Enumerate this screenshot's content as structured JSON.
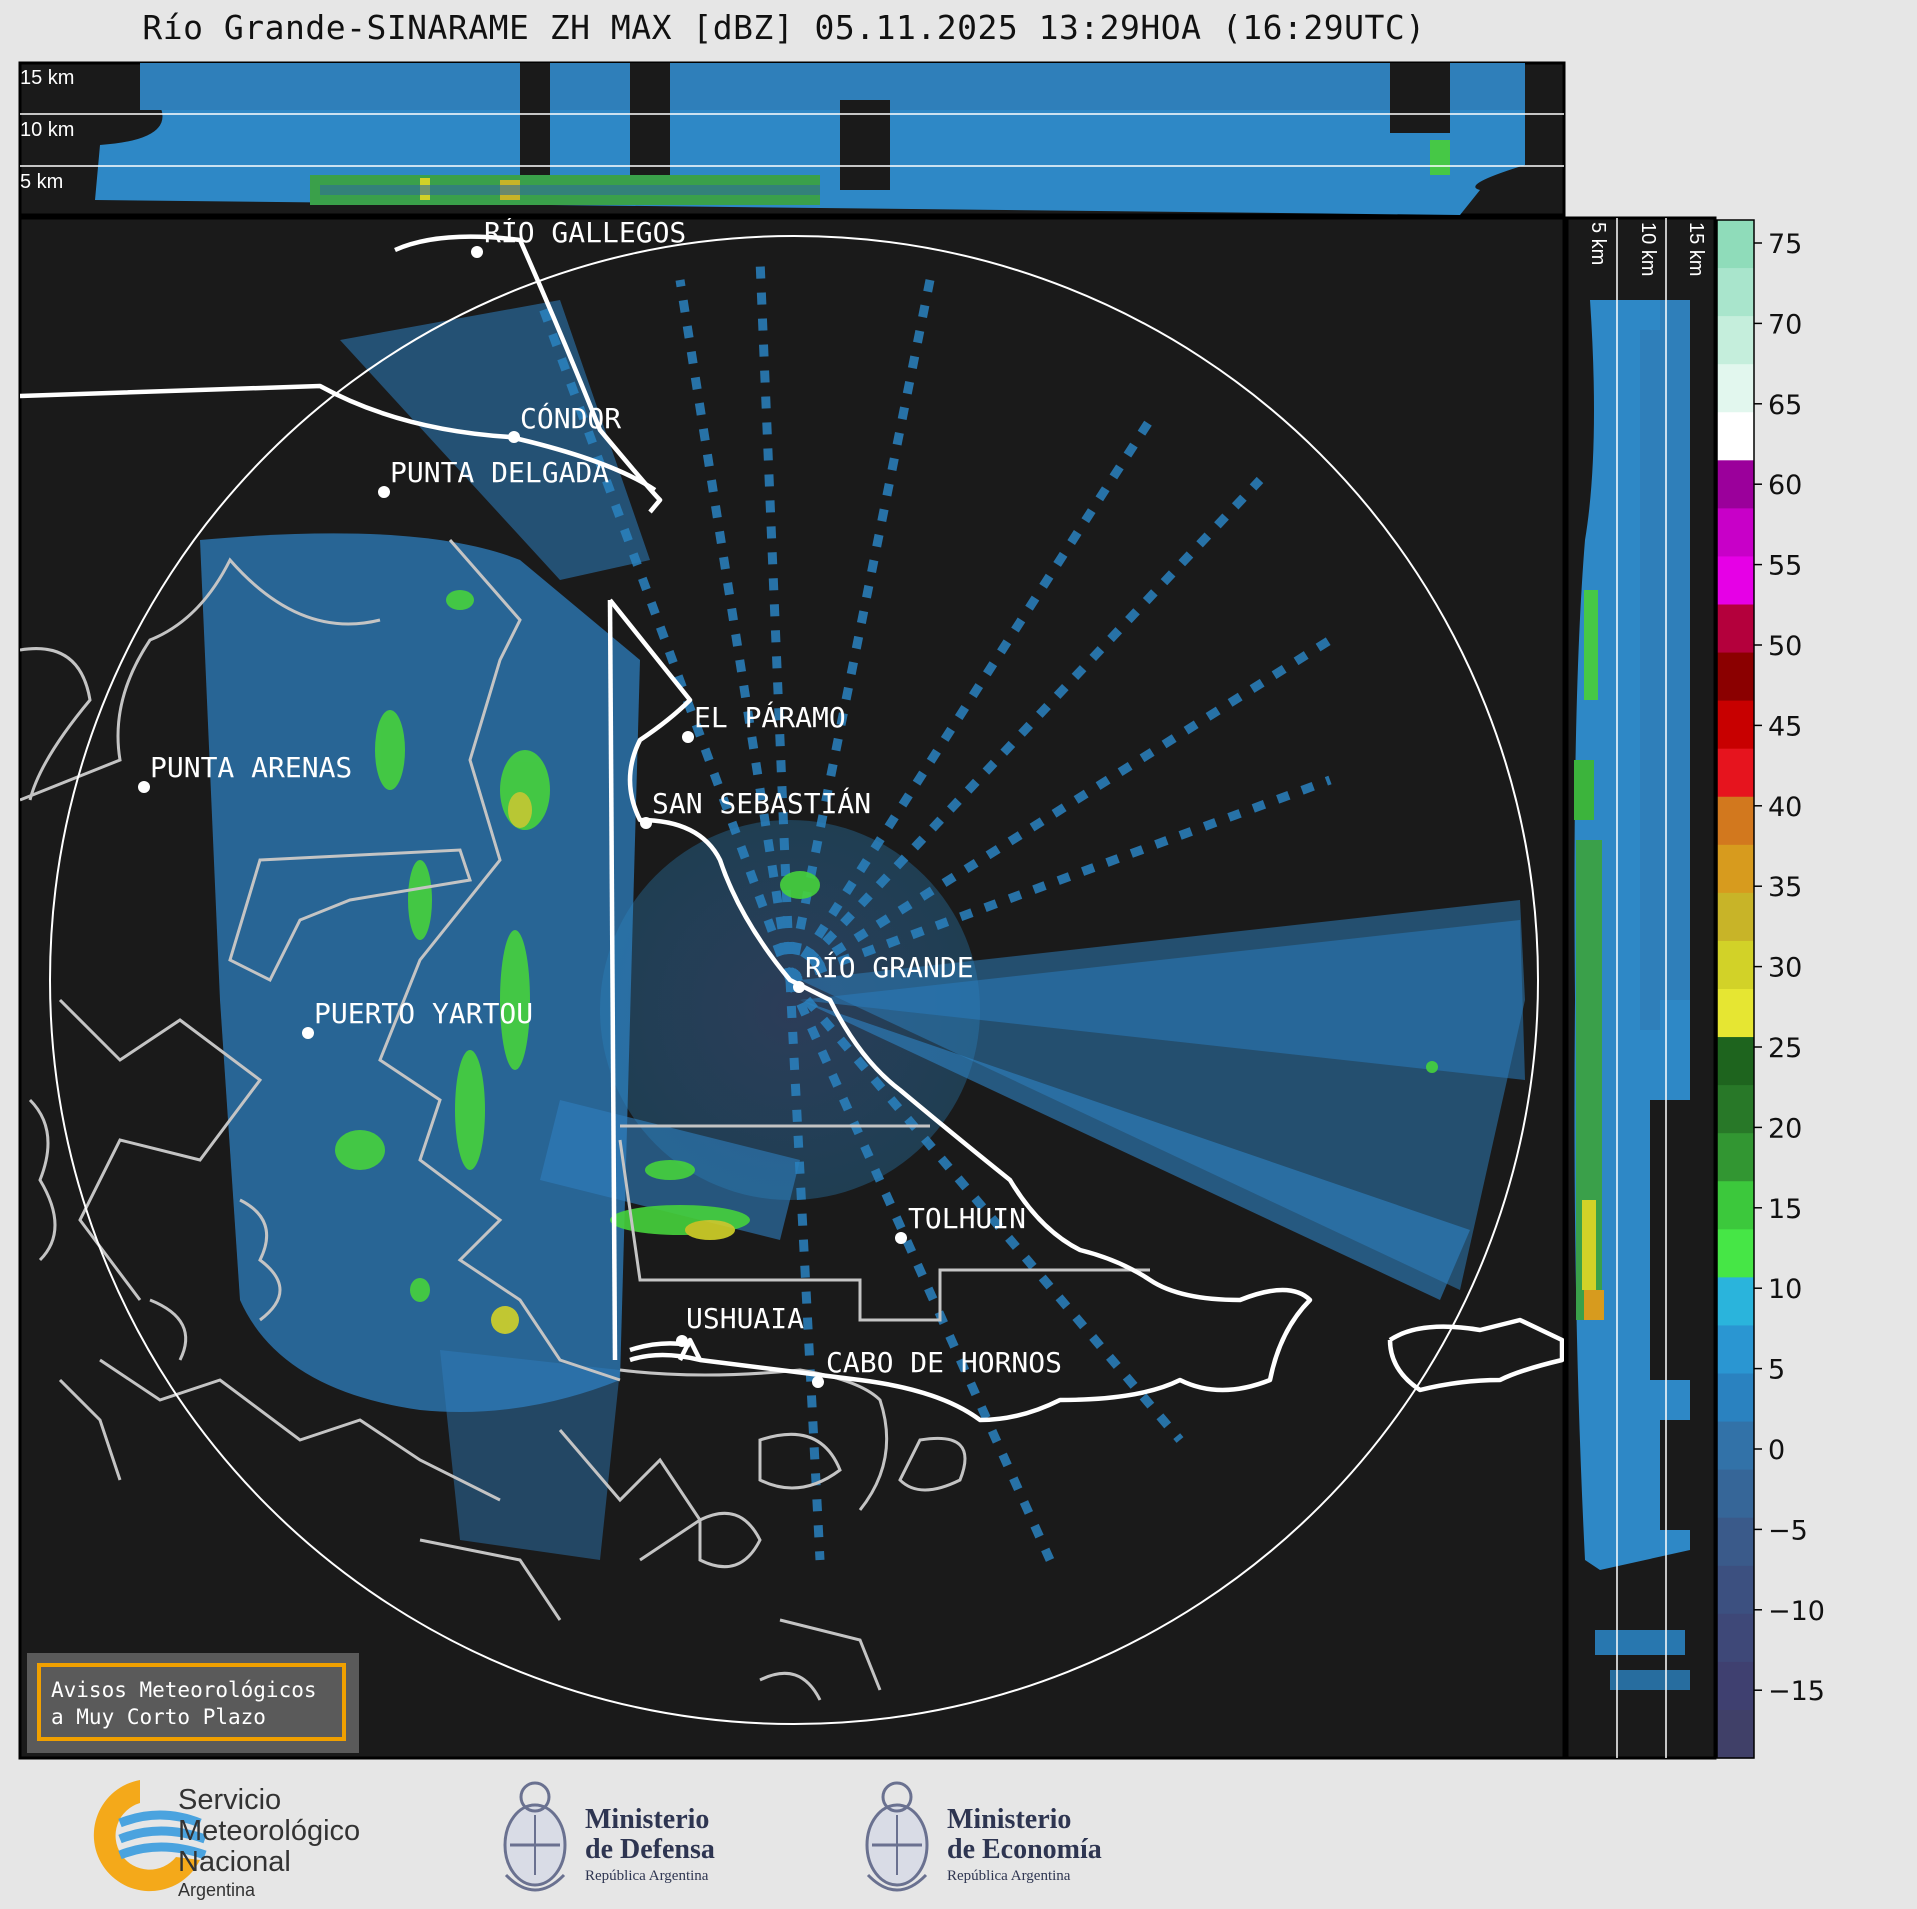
{
  "title": "Río Grande-SINARAME ZH MAX [dBZ] 05.11.2025 13:29HOA (16:29UTC)",
  "top_profile": {
    "height_labels": [
      "15 km",
      "10 km",
      "5 km"
    ]
  },
  "side_profile": {
    "height_labels": [
      "5 km",
      "10 km",
      "15 km"
    ]
  },
  "colorbar": {
    "ticks": [
      "75",
      "70",
      "65",
      "60",
      "55",
      "50",
      "45",
      "40",
      "35",
      "30",
      "25",
      "20",
      "15",
      "10",
      "5",
      "0",
      "−5",
      "−10",
      "−15"
    ],
    "colors": [
      "#8fdcba",
      "#a9e5cc",
      "#c5eedc",
      "#e2f7ee",
      "#ffffff",
      "#9b009b",
      "#c800c8",
      "#e600e6",
      "#b4003c",
      "#8b0000",
      "#c80000",
      "#e6141e",
      "#d2781e",
      "#d79b1e",
      "#c8b428",
      "#d2d228",
      "#e6e632",
      "#1e641e",
      "#287828",
      "#329632",
      "#3cc83c",
      "#46e646",
      "#2ab4dc",
      "#2a96d2",
      "#2a82c0",
      "#3272a8",
      "#366698",
      "#3a5a8a",
      "#3c5080",
      "#3e4878",
      "#3f4070",
      "#404068"
    ]
  },
  "places": [
    {
      "name": "RÍO GALLEGOS"
    },
    {
      "name": "CÓNDOR"
    },
    {
      "name": "PUNTA DELGADA"
    },
    {
      "name": "EL PÁRAMO"
    },
    {
      "name": "PUNTA ARENAS"
    },
    {
      "name": "SAN SEBASTIÁN"
    },
    {
      "name": "RÍO GRANDE"
    },
    {
      "name": "PUERTO YARTOU"
    },
    {
      "name": "TOLHUIN"
    },
    {
      "name": "USHUAIA"
    },
    {
      "name": "CABO DE HORNOS"
    }
  ],
  "warning_box": {
    "line1": "Avisos Meteorológicos",
    "line2": "a Muy Corto Plazo"
  },
  "logos": {
    "smn": {
      "line1": "Servicio",
      "line2": "Meteorológico",
      "line3": "Nacional",
      "line4": "Argentina"
    },
    "defensa": {
      "line1": "Ministerio",
      "line2": "de Defensa",
      "line3": "República Argentina"
    },
    "economia": {
      "line1": "Ministerio",
      "line2": "de Economía",
      "line3": "República Argentina"
    }
  }
}
